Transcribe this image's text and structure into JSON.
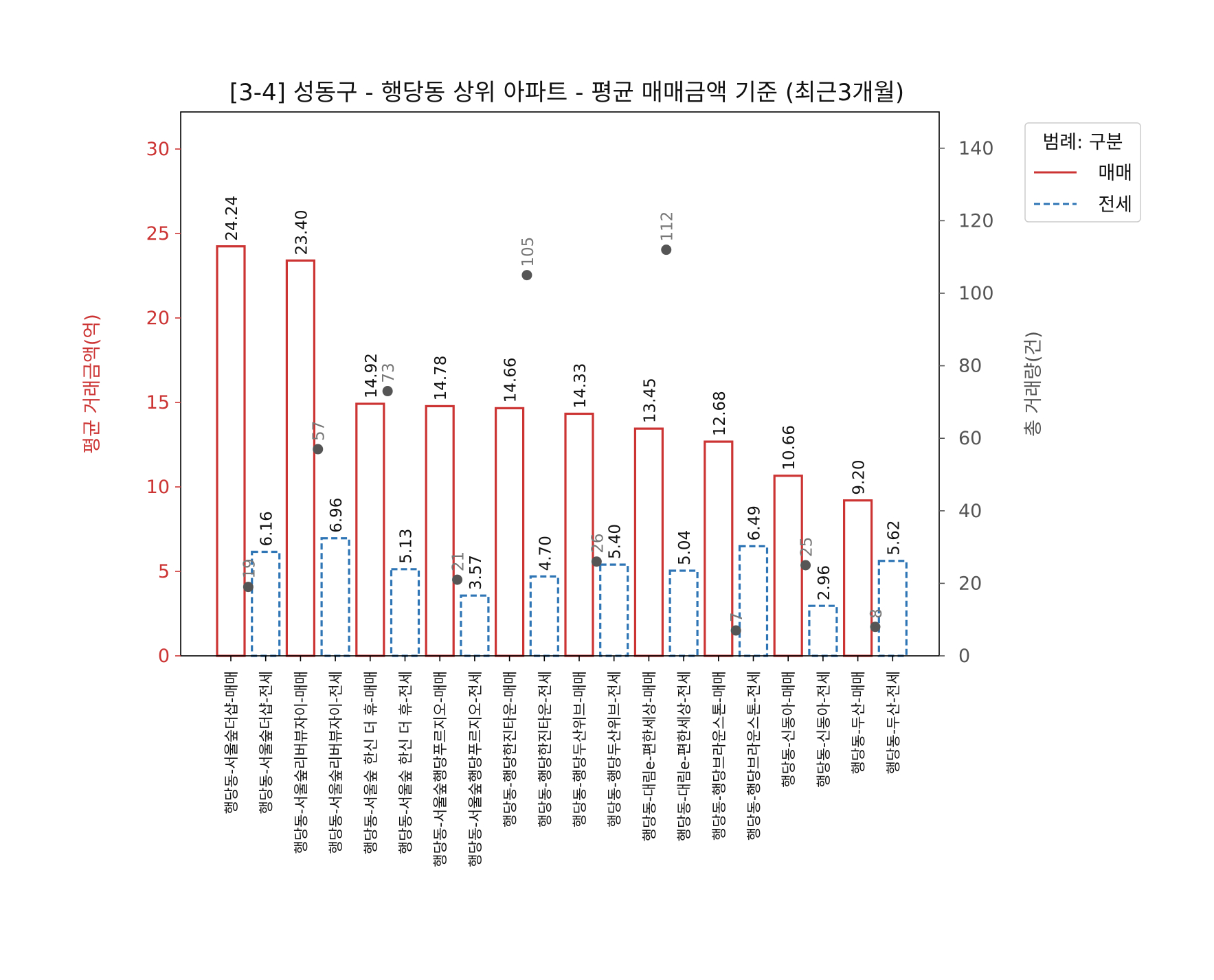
{
  "chart_data": {
    "type": "bar",
    "title": "[3-4] 성동구 - 행당동 상위 아파트 - 평균 매매금액 기준 (최근3개월)",
    "ylabel": "평균 거래금액(억)",
    "y2label": "총 거래량(건)",
    "ylim": [
      0,
      32
    ],
    "y2lim": [
      0,
      150
    ],
    "yticks": [
      "0",
      "5",
      "10",
      "15",
      "20",
      "25",
      "30"
    ],
    "y2ticks": [
      "0",
      "20",
      "40",
      "60",
      "80",
      "100",
      "120",
      "140"
    ],
    "legend": {
      "title": "범례: 구분",
      "placement": "outside-top-right",
      "entries": [
        {
          "label": "매매",
          "color": "#cc3333",
          "style": "solid"
        },
        {
          "label": "전세",
          "color": "#2e75b6",
          "style": "dashed"
        }
      ]
    },
    "categories": [
      "행당동-서울숲더샵-매매",
      "행당동-서울숲더샵-전세",
      "행당동-서울숲리버뷰자이-매매",
      "행당동-서울숲리버뷰자이-전세",
      "행당동-서울숲 한신 더 휴-매매",
      "행당동-서울숲 한신 더 휴-전세",
      "행당동-서울숲행당푸르지오-매매",
      "행당동-서울숲행당푸르지오-전세",
      "행당동-행당한진타운-매매",
      "행당동-행당한진타운-전세",
      "행당동-행당두산위브-매매",
      "행당동-행당두산위브-전세",
      "행당동-대림e-편한세상-매매",
      "행당동-대림e-편한세상-전세",
      "행당동-행당브라운스톤-매매",
      "행당동-행당브라운스톤-전세",
      "행당동-신동아-매매",
      "행당동-신동아-전세",
      "행당동-두산-매매",
      "행당동-두산-전세"
    ],
    "kinds": [
      "매매",
      "전세",
      "매매",
      "전세",
      "매매",
      "전세",
      "매매",
      "전세",
      "매매",
      "전세",
      "매매",
      "전세",
      "매매",
      "전세",
      "매매",
      "전세",
      "매매",
      "전세",
      "매매",
      "전세"
    ],
    "values": [
      24.24,
      6.16,
      23.4,
      6.96,
      14.92,
      5.13,
      14.78,
      3.57,
      14.66,
      4.7,
      14.33,
      5.4,
      13.45,
      5.04,
      12.68,
      6.49,
      10.66,
      2.96,
      9.2,
      5.62
    ],
    "value_labels": [
      "24.24",
      "6.16",
      "23.40",
      "6.96",
      "14.92",
      "5.13",
      "14.78",
      "3.57",
      "14.66",
      "4.70",
      "14.33",
      "5.40",
      "13.45",
      "5.04",
      "12.68",
      "6.49",
      "10.66",
      "2.96",
      "9.20",
      "5.62"
    ],
    "volume_series": {
      "points": [
        {
          "x": 0.5,
          "value": 19,
          "label": "19"
        },
        {
          "x": 2.5,
          "value": 57,
          "label": "57"
        },
        {
          "x": 4.5,
          "value": 73,
          "label": "73"
        },
        {
          "x": 6.5,
          "value": 21,
          "label": "21"
        },
        {
          "x": 8.5,
          "value": 105,
          "label": "105"
        },
        {
          "x": 10.5,
          "value": 26,
          "label": "26"
        },
        {
          "x": 12.5,
          "value": 112,
          "label": "112"
        },
        {
          "x": 14.5,
          "value": 7,
          "label": "7"
        },
        {
          "x": 16.5,
          "value": 25,
          "label": "25"
        },
        {
          "x": 18.5,
          "value": 8,
          "label": "8"
        }
      ],
      "color": "#555555"
    },
    "grid": false
  }
}
